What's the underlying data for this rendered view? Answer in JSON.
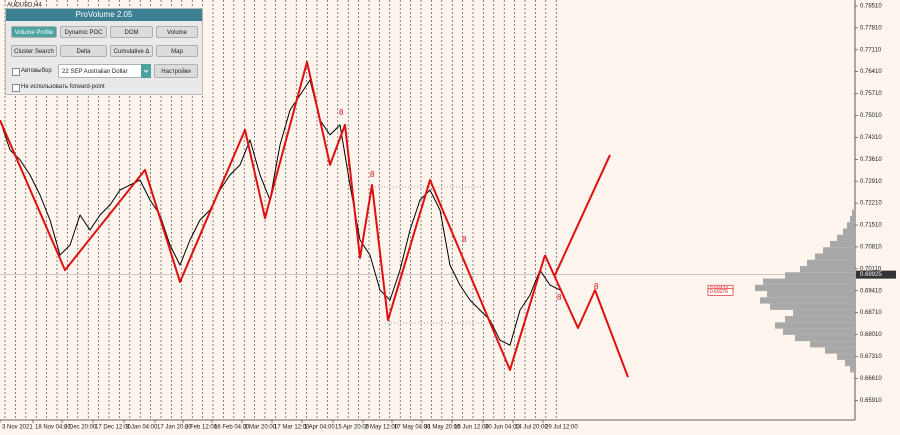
{
  "window": {
    "symbol": "AUDUSD,H4"
  },
  "panel": {
    "title": "ProVolume 2.05",
    "buttons": [
      "Volume Profile",
      "Dynamic POC",
      "DOM",
      "Volume",
      "Cluster Search",
      "Delta",
      "Cumulative Δ",
      "Map"
    ],
    "auto_select": "Автовыбор",
    "instrument": "22 SEP Australian Dollar",
    "settings": "Настройки",
    "forward_point": "Не использовать forward-point"
  },
  "chart_data": {
    "type": "line",
    "xlim": [
      0,
      85.5
    ],
    "ylim": [
      0.6528,
      0.787
    ],
    "xticks": [
      {
        "value": 0,
        "label": "3 Nov 2021"
      },
      {
        "value": 3.3,
        "label": "18 Nov 04:00"
      },
      {
        "value": 6.2,
        "label": "2 Dec 20:00"
      },
      {
        "value": 9.3,
        "label": "17 Dec 12:00"
      },
      {
        "value": 12.4,
        "label": "3 Jan 04:00"
      },
      {
        "value": 15.5,
        "label": "17 Jan 20:00"
      },
      {
        "value": 18.3,
        "label": "2 Feb 12:00"
      },
      {
        "value": 21.2,
        "label": "16 Feb 04:00"
      },
      {
        "value": 24.2,
        "label": "2 Mar 20:00"
      },
      {
        "value": 27.2,
        "label": "17 Mar 12:00"
      },
      {
        "value": 30.2,
        "label": "1 Apr 04:00"
      },
      {
        "value": 33.3,
        "label": "15 Apr 20:00"
      },
      {
        "value": 36.3,
        "label": "2 May 12:00"
      },
      {
        "value": 39.2,
        "label": "17 May 04:00"
      },
      {
        "value": 42.2,
        "label": "31 May 20:00"
      },
      {
        "value": 45.2,
        "label": "15 Jun 12:00"
      },
      {
        "value": 48.3,
        "label": "30 Jun 04:00"
      },
      {
        "value": 51.3,
        "label": "14 Jul 20:00"
      },
      {
        "value": 54.3,
        "label": "29 Jul 12:00"
      }
    ],
    "yticks": [
      {
        "value": 0.7851,
        "label": "0.78510"
      },
      {
        "value": 0.7781,
        "label": "0.77810"
      },
      {
        "value": 0.7711,
        "label": "0.77110"
      },
      {
        "value": 0.7641,
        "label": "0.76410"
      },
      {
        "value": 0.7571,
        "label": "0.75710"
      },
      {
        "value": 0.7501,
        "label": "0.75010"
      },
      {
        "value": 0.7431,
        "label": "0.74310"
      },
      {
        "value": 0.7361,
        "label": "0.73610"
      },
      {
        "value": 0.7291,
        "label": "0.72910"
      },
      {
        "value": 0.7221,
        "label": "0.72210"
      },
      {
        "value": 0.7151,
        "label": "0.71510"
      },
      {
        "value": 0.7081,
        "label": "0.70810"
      },
      {
        "value": 0.7011,
        "label": "0.70110"
      },
      {
        "value": 0.6941,
        "label": "0.69410"
      },
      {
        "value": 0.6871,
        "label": "0.68710"
      },
      {
        "value": 0.6801,
        "label": "0.68010"
      },
      {
        "value": 0.6731,
        "label": "0.67310"
      },
      {
        "value": 0.6661,
        "label": "0.66610"
      },
      {
        "value": 0.6591,
        "label": "0.65910"
      }
    ],
    "series": [
      {
        "color": "#000000",
        "values": [
          0.7486,
          0.7391,
          0.7359,
          0.7311,
          0.7247,
          0.7167,
          0.7055,
          0.7087,
          0.7183,
          0.7135,
          0.7183,
          0.7215,
          0.7263,
          0.7279,
          0.7295,
          0.7231,
          0.7183,
          0.7087,
          0.7023,
          0.7103,
          0.7167,
          0.7199,
          0.7263,
          0.7311,
          0.7343,
          0.7423,
          0.7311,
          0.7231,
          0.7407,
          0.7518,
          0.7566,
          0.7614,
          0.7486,
          0.7439,
          0.7471,
          0.7279,
          0.7103,
          0.7055,
          0.6943,
          0.6911,
          0.7007,
          0.7135,
          0.7231,
          0.7263,
          0.7199,
          0.7023,
          0.6959,
          0.6911,
          0.6879,
          0.6847,
          0.6783,
          0.6767,
          0.6879,
          0.6927,
          0.7007,
          0.6959,
          0.6943
        ]
      },
      {
        "color": "#e01010",
        "x": [
          0,
          6.5,
          14.5,
          18,
          24.5,
          26.5,
          30.7,
          33,
          34.5,
          36,
          37.2,
          38.8,
          43,
          51,
          54.5
        ],
        "values": [
          0.7486,
          0.7007,
          0.7327,
          0.6969,
          0.7455,
          0.7173,
          0.7672,
          0.7343,
          0.7471,
          0.7046,
          0.7279,
          0.6847,
          0.7295,
          0.6688,
          0.7055
        ]
      },
      {
        "color": "#e01010",
        "x": [
          54.5,
          57.8,
          59.5,
          62.8
        ],
        "values": [
          0.7055,
          0.6822,
          0.6943,
          0.6665
        ]
      },
      {
        "color": "#e01010",
        "x": [
          55.5,
          61
        ],
        "values": [
          0.6991,
          0.7375
        ]
      }
    ],
    "annotations": [
      "8",
      "8",
      "8",
      "8",
      "8"
    ],
    "current_price": 0.69925,
    "levels": [
      0.69474,
      0.69376
    ],
    "profile": {
      "color": "#a8a8a8",
      "bins": [
        0.668,
        0.67,
        0.672,
        0.674,
        0.676,
        0.678,
        0.68,
        0.682,
        0.684,
        0.686,
        0.688,
        0.69,
        0.692,
        0.694,
        0.696,
        0.698,
        0.7,
        0.702,
        0.704,
        0.706,
        0.708,
        0.71,
        0.712,
        0.714,
        0.716,
        0.718,
        0.72
      ],
      "values": [
        5,
        10,
        18,
        30,
        45,
        60,
        72,
        80,
        70,
        62,
        85,
        95,
        88,
        100,
        92,
        70,
        55,
        48,
        40,
        32,
        25,
        18,
        12,
        8,
        5,
        3
      ]
    }
  }
}
